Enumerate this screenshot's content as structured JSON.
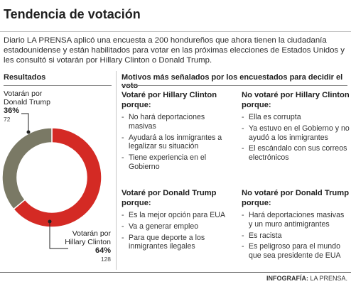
{
  "title": "Tendencia de votación",
  "intro": "Diario LA PRENSA aplicó una encuesta a 200 hondureños que ahora tienen la ciudadanía estadounidense y están habilitados para votar en las próximas elecciones de Estados Unidos y les consultó si votarán por Hillary Clinton o Donald Trump.",
  "results_heading": "Resultados",
  "reasons_heading": "Motivos más señalados por los encuestados para decidir el voto",
  "chart_data": {
    "type": "pie",
    "donut": true,
    "slices": [
      {
        "label_line1": "Votarán por",
        "label_line2": "Hillary Clinton",
        "percent_label": "64%",
        "value": 64,
        "count": "128",
        "color": "#d42a24"
      },
      {
        "label_line1": "Votarán por",
        "label_line2": "Donald Trump",
        "percent_label": "36%",
        "value": 36,
        "count": "72",
        "color": "#7a7965"
      }
    ]
  },
  "reasons": [
    {
      "heading": "Votaré por Hillary Clinton porque:",
      "items": [
        "No hará deportaciones masivas",
        "Ayudará a los inmigrantes a legalizar su situación",
        "Tiene experiencia en el Gobierno"
      ]
    },
    {
      "heading": "No votaré por Hillary Clinton porque:",
      "items": [
        "Ella es corrupta",
        "Ya estuvo en el Gobierno y no ayudó a los inmigrantes",
        "El escándalo con sus correos electrónicos"
      ]
    },
    {
      "heading": "Votaré por Donald Trump porque:",
      "items": [
        "Es la mejor opción para EUA",
        "Va a generar empleo",
        "Para que deporte a los inmigrantes ilegales"
      ]
    },
    {
      "heading": "No votaré por Donald Trump porque:",
      "items": [
        "Hará deportaciones masivas y un muro antimigrantes",
        "Es racista",
        "Es peligroso para el mundo que sea presidente de EUA"
      ]
    }
  ],
  "credit_label": "INFOGRAFÍA:",
  "credit_source": "LA PRENSA."
}
